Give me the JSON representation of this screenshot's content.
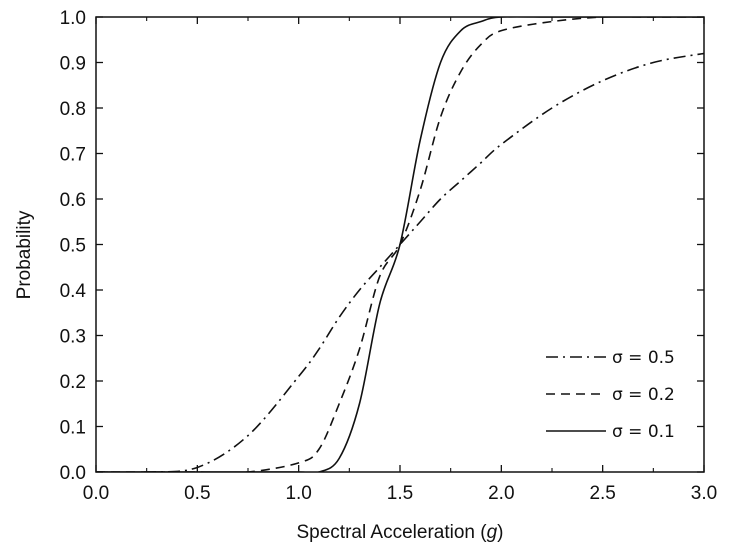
{
  "chart_data": {
    "type": "line",
    "title": "",
    "xlabel_prefix": "Spectral Acceleration (",
    "xlabel_unit": "g",
    "xlabel_suffix": ")",
    "ylabel": "Probability",
    "xlim": [
      0.0,
      3.0
    ],
    "ylim": [
      0.0,
      1.0
    ],
    "xticks": [
      "0.0",
      "0.5",
      "1.0",
      "1.5",
      "2.0",
      "2.5",
      "3.0"
    ],
    "yticks": [
      "0.0",
      "0.1",
      "0.2",
      "0.3",
      "0.4",
      "0.5",
      "0.6",
      "0.7",
      "0.8",
      "0.9",
      "1.0"
    ],
    "grid": false,
    "legend_position": "bottom-right",
    "x": [
      0.0,
      0.25,
      0.5,
      0.75,
      1.0,
      1.1,
      1.2,
      1.3,
      1.4,
      1.5,
      1.6,
      1.7,
      1.8,
      1.9,
      2.0,
      2.25,
      2.5,
      2.75,
      3.0
    ],
    "series": [
      {
        "name": "σ = 0.5",
        "style": "dashdot",
        "values": [
          0.0,
          0.0,
          0.01,
          0.08,
          0.21,
          0.27,
          0.34,
          0.4,
          0.45,
          0.5,
          0.55,
          0.6,
          0.64,
          0.68,
          0.72,
          0.8,
          0.86,
          0.9,
          0.92
        ]
      },
      {
        "name": "σ = 0.2",
        "style": "dashed",
        "values": [
          0.0,
          0.0,
          0.0,
          0.0,
          0.02,
          0.05,
          0.15,
          0.27,
          0.43,
          0.5,
          0.62,
          0.78,
          0.88,
          0.94,
          0.97,
          0.99,
          1.0,
          1.0,
          1.0
        ]
      },
      {
        "name": "σ = 0.1",
        "style": "solid",
        "values": [
          0.0,
          0.0,
          0.0,
          0.0,
          0.0,
          0.0,
          0.03,
          0.15,
          0.37,
          0.5,
          0.73,
          0.9,
          0.97,
          0.99,
          1.0,
          1.0,
          1.0,
          1.0,
          1.0
        ]
      }
    ]
  }
}
